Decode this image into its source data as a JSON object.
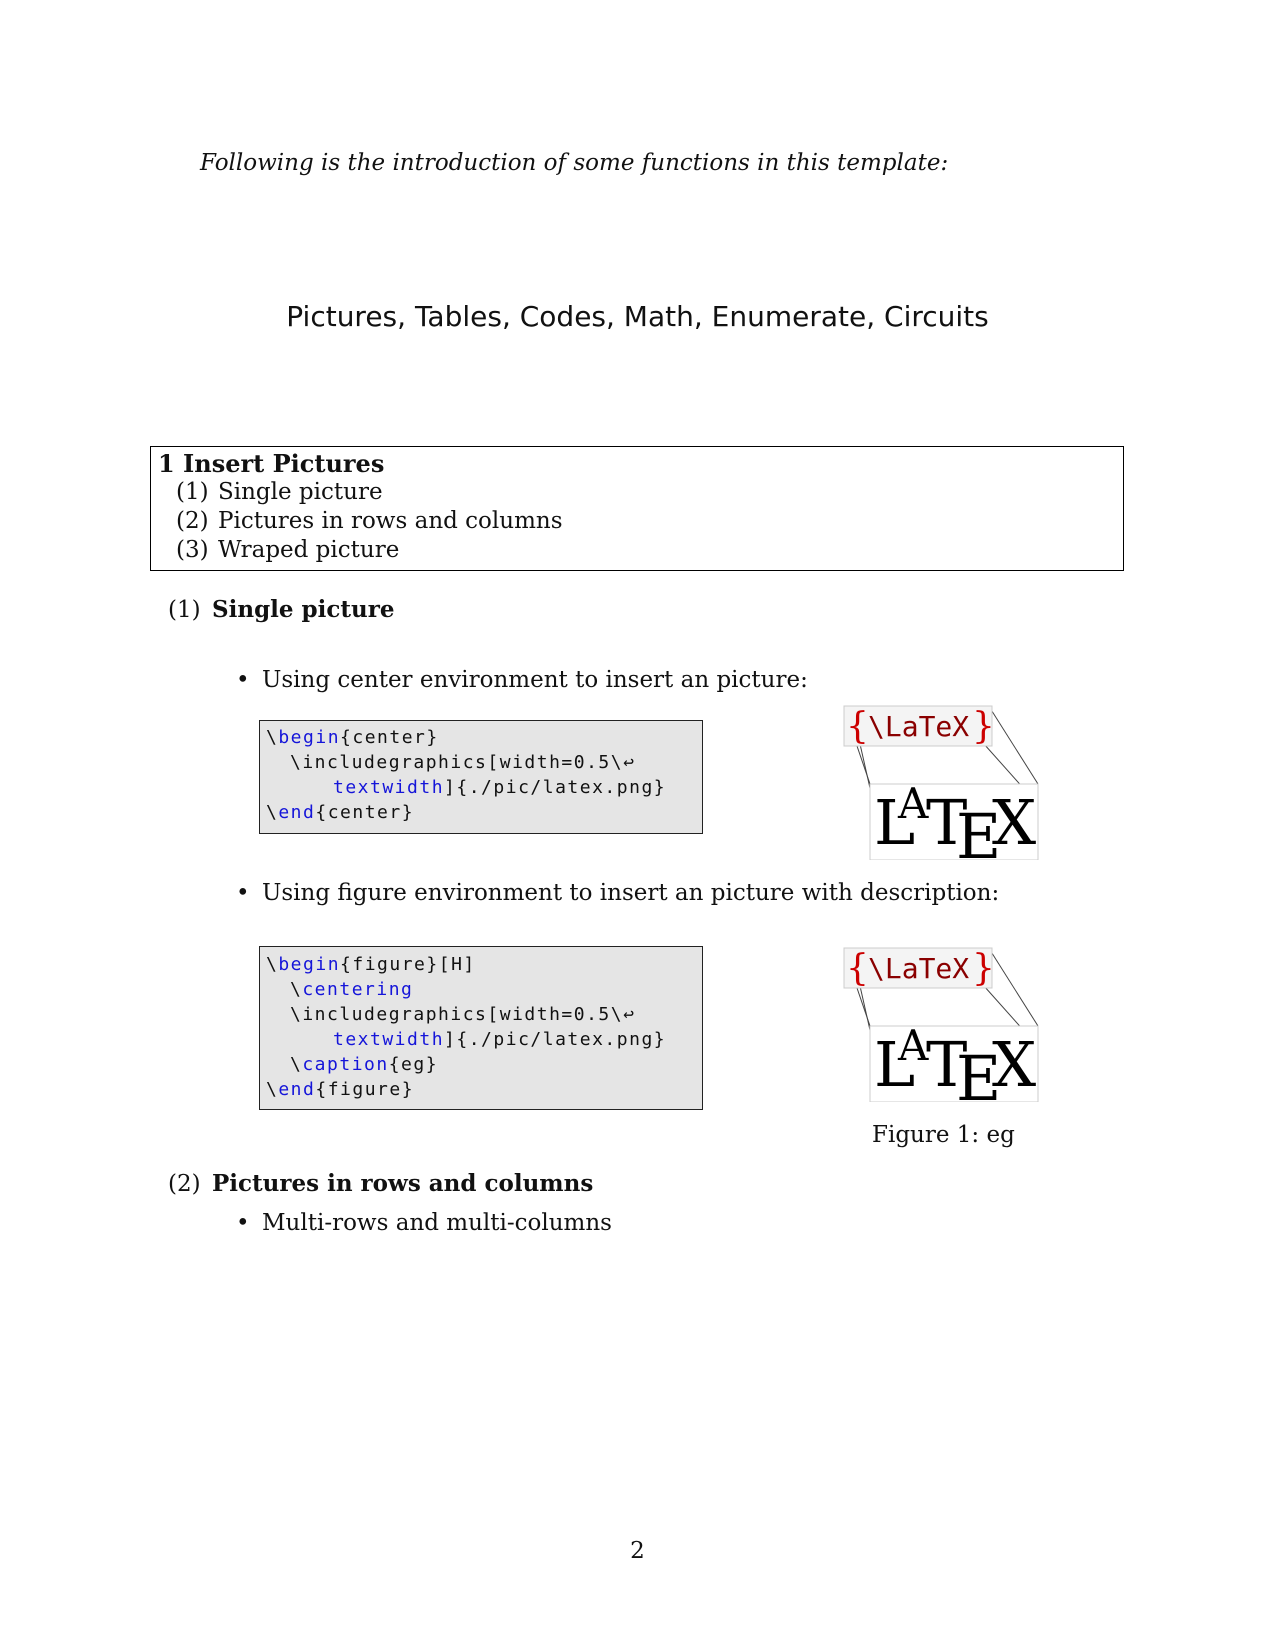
{
  "intro": "Following is the introduction of some functions in this template:",
  "subtitle": "Pictures, Tables, Codes, Math, Enumerate, Circuits",
  "toc": {
    "title": "1   Insert Pictures",
    "items": [
      {
        "num": "(1)",
        "label": "Single picture"
      },
      {
        "num": "(2)",
        "label": "Pictures in rows and columns"
      },
      {
        "num": "(3)",
        "label": "Wraped picture"
      }
    ]
  },
  "section1": {
    "num": "(1)",
    "title": "Single picture",
    "bullet1": "Using center environment to insert an picture:",
    "code1": {
      "l1_bs": "\\",
      "l1_kw": "begin",
      "l1_rest": "{center}",
      "l2": "\\includegraphics[width=0.5\\↩",
      "l3_kw": "textwidth",
      "l3_rest": "]{./pic/latex.png}",
      "l4_bs": "\\",
      "l4_kw": "end",
      "l4_rest": "{center}"
    },
    "bullet2": "Using figure environment to insert an picture with description:",
    "code2": {
      "l1_bs": "\\",
      "l1_kw": "begin",
      "l1_rest": "{figure}[H]",
      "l2_bs": "\\",
      "l2_kw": "centering",
      "l3": "\\includegraphics[width=0.5\\↩",
      "l4_kw": "textwidth",
      "l4_rest": "]{./pic/latex.png}",
      "l5_bs": "\\",
      "l5_kw": "caption",
      "l5_rest": "{eg}",
      "l6_bs": "\\",
      "l6_kw": "end",
      "l6_rest": "{figure}"
    },
    "logo_top": "{\\LaTeX}",
    "logo_bottom_L": "L",
    "logo_bottom_A": "A",
    "logo_bottom_T": "T",
    "logo_bottom_E": "E",
    "logo_bottom_X": "X",
    "caption": "Figure 1:  eg"
  },
  "section2": {
    "num": "(2)",
    "title": "Pictures in rows and columns",
    "bullet1": "Multi-rows and multi-columns"
  },
  "page_number": "2",
  "colors": {
    "keyword": "#1515d9",
    "logo_red": "#cc0000",
    "code_bg": "#e5e5e5"
  }
}
